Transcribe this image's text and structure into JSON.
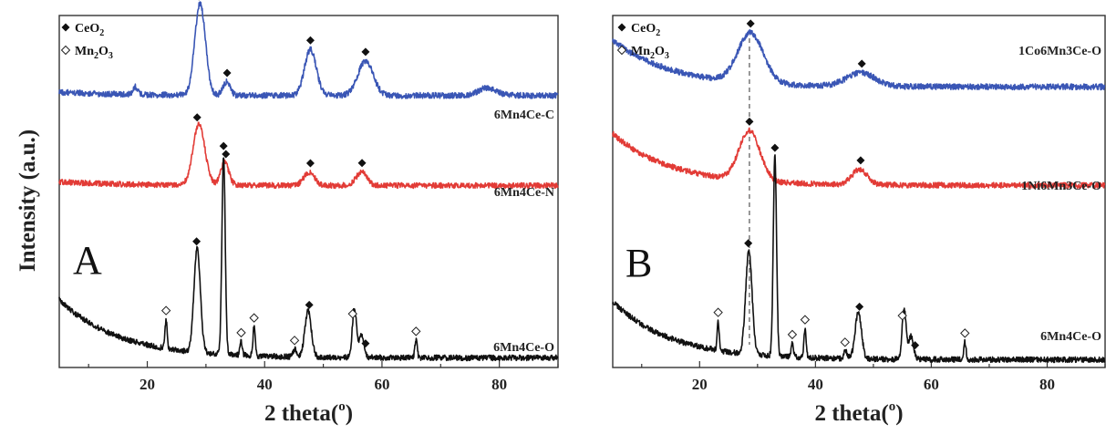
{
  "chart_data": [
    {
      "type": "line",
      "panel_letter": "A",
      "xlabel": "2 theta(°)",
      "ylabel": "Intensity (a.u.)",
      "xlim": [
        5,
        90
      ],
      "xticks": [
        20,
        40,
        60,
        80
      ],
      "legend": {
        "placement": "top-left",
        "entries": [
          {
            "marker": "filled-diamond",
            "label": "CeO",
            "sub": "2"
          },
          {
            "marker": "open-diamond",
            "label": "Mn",
            "sub1": "2",
            "mid": "O",
            "sub2": "3"
          }
        ]
      },
      "series": [
        {
          "name": "6Mn4Ce-C",
          "color": "#3a56b5",
          "baseline": 0.93,
          "end": 0.84,
          "peaks": [
            [
              29.0,
              2.4,
              0.9
            ],
            [
              33.5,
              0.35,
              0.6
            ],
            [
              47.8,
              1.2,
              1.0
            ],
            [
              57.2,
              0.9,
              1.3
            ],
            [
              18.0,
              0.2,
              0.4
            ],
            [
              78.0,
              0.2,
              1.5
            ]
          ],
          "markers": [
            {
              "type": "CeO2",
              "x": 28.8
            },
            {
              "type": "CeO2",
              "x": 33.6
            },
            {
              "type": "CeO2",
              "x": 47.8
            },
            {
              "type": "CeO2",
              "x": 57.2
            }
          ]
        },
        {
          "name": "6Mn4Ce-N",
          "color": "#e23b36",
          "baseline": 0.9,
          "end": 0.8,
          "peaks": [
            [
              28.8,
              1.6,
              1.0
            ],
            [
              33.2,
              0.6,
              0.7
            ],
            [
              47.6,
              0.35,
              0.9
            ],
            [
              56.5,
              0.35,
              0.9
            ]
          ],
          "markers": [
            {
              "type": "CeO2",
              "x": 28.5
            },
            {
              "type": "CeO2",
              "x": 33.4
            },
            {
              "type": "CeO2",
              "x": 47.8
            },
            {
              "type": "CeO2",
              "x": 56.6
            }
          ]
        },
        {
          "name": "6Mn4Ce-O",
          "color": "#111111",
          "baseline": 1.7,
          "end": 0.18,
          "peaks": [
            [
              28.5,
              2.7,
              0.55
            ],
            [
              33.0,
              5.2,
              0.28
            ],
            [
              23.2,
              0.75,
              0.18
            ],
            [
              38.2,
              0.75,
              0.2
            ],
            [
              36.0,
              0.35,
              0.2
            ],
            [
              47.4,
              1.2,
              0.55
            ],
            [
              55.3,
              1.3,
              0.35
            ],
            [
              56.5,
              0.6,
              0.4
            ],
            [
              65.8,
              0.45,
              0.2
            ],
            [
              45.2,
              0.2,
              0.3
            ]
          ],
          "markers": [
            {
              "type": "CeO2",
              "x": 28.4
            },
            {
              "type": "CeO2",
              "x": 33.0
            },
            {
              "type": "CeO2",
              "x": 47.6
            },
            {
              "type": "CeO2",
              "x": 57.2
            },
            {
              "type": "Mn2O3",
              "x": 23.2
            },
            {
              "type": "Mn2O3",
              "x": 36.0
            },
            {
              "type": "Mn2O3",
              "x": 38.2
            },
            {
              "type": "Mn2O3",
              "x": 45.1
            },
            {
              "type": "Mn2O3",
              "x": 55.0
            },
            {
              "type": "Mn2O3",
              "x": 65.8
            }
          ]
        }
      ]
    },
    {
      "type": "line",
      "panel_letter": "B",
      "xlabel": "2 theta(°)",
      "xlim": [
        5,
        90
      ],
      "xticks": [
        20,
        40,
        60,
        80
      ],
      "reference_line_x": 28.6,
      "legend": {
        "placement": "top-left",
        "entries": [
          {
            "marker": "filled-diamond",
            "label": "CeO",
            "sub": "2"
          },
          {
            "marker": "open-diamond",
            "label": "Mn",
            "sub1": "2",
            "mid": "O",
            "sub2": "3"
          }
        ]
      },
      "series": [
        {
          "name": "1Co6Mn3Ce-O",
          "color": "#3a56b5",
          "baseline": 2.0,
          "end": 0.78,
          "peaks": [
            [
              28.8,
              1.3,
              2.2
            ],
            [
              47.8,
              0.35,
              2.4
            ]
          ],
          "markers": [
            {
              "type": "CeO2",
              "x": 28.8
            },
            {
              "type": "CeO2",
              "x": 48.0
            }
          ]
        },
        {
          "name": "1Ni6Mn3Ce-O",
          "color": "#e23b36",
          "baseline": 2.2,
          "end": 0.85,
          "peaks": [
            [
              28.6,
              1.3,
              1.8
            ],
            [
              47.6,
              0.4,
              1.3
            ]
          ],
          "markers": [
            {
              "type": "CeO2",
              "x": 28.6
            },
            {
              "type": "CeO2",
              "x": 47.8
            }
          ]
        },
        {
          "name": "6Mn4Ce-O",
          "color": "#111111",
          "baseline": 1.7,
          "end": 0.18,
          "peaks": [
            [
              28.5,
              2.7,
              0.55
            ],
            [
              33.0,
              5.2,
              0.28
            ],
            [
              23.2,
              0.75,
              0.18
            ],
            [
              38.2,
              0.75,
              0.2
            ],
            [
              36.0,
              0.35,
              0.2
            ],
            [
              47.4,
              1.2,
              0.55
            ],
            [
              55.3,
              1.3,
              0.35
            ],
            [
              56.5,
              0.6,
              0.4
            ],
            [
              65.8,
              0.45,
              0.2
            ],
            [
              45.2,
              0.2,
              0.3
            ]
          ],
          "markers": [
            {
              "type": "CeO2",
              "x": 28.4
            },
            {
              "type": "CeO2",
              "x": 33.0
            },
            {
              "type": "CeO2",
              "x": 47.6
            },
            {
              "type": "CeO2",
              "x": 57.2
            },
            {
              "type": "Mn2O3",
              "x": 23.2
            },
            {
              "type": "Mn2O3",
              "x": 36.0
            },
            {
              "type": "Mn2O3",
              "x": 38.2
            },
            {
              "type": "Mn2O3",
              "x": 45.1
            },
            {
              "type": "Mn2O3",
              "x": 55.0
            },
            {
              "type": "Mn2O3",
              "x": 65.8
            }
          ]
        }
      ]
    }
  ]
}
